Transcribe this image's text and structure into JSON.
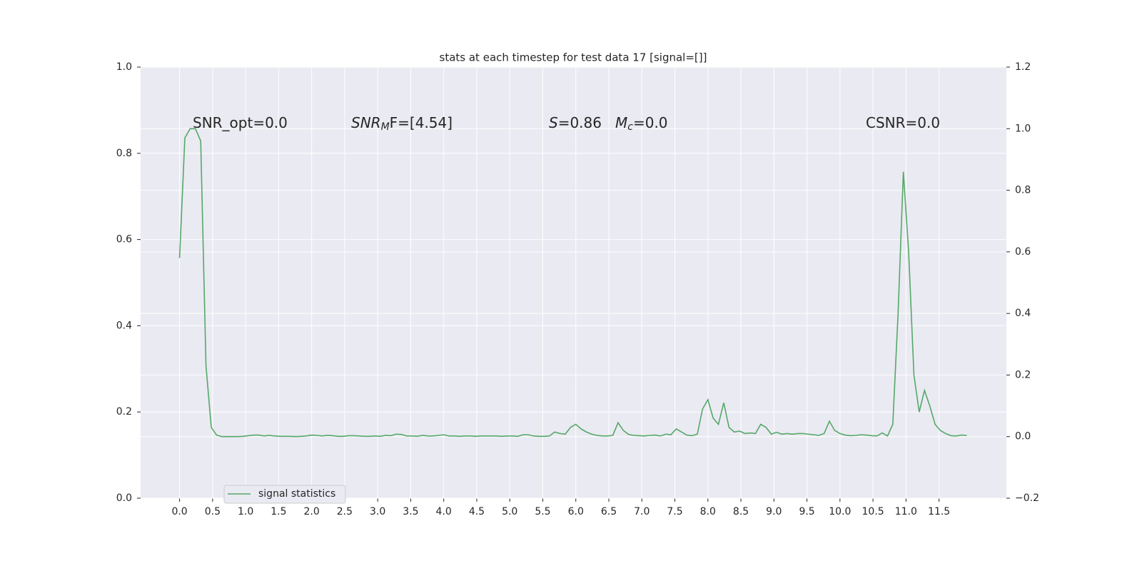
{
  "chart_data": {
    "type": "line",
    "title": "stats at each timestep for test data 17 [signal=[]]",
    "annotations": [
      {
        "text": "SNR_opt=0.0"
      },
      {
        "italic": "SNR",
        "sub": "M",
        "text": "F=[4.54]"
      },
      {
        "italic": "S",
        "text": "=0.86"
      },
      {
        "italic": "M",
        "sub": "c",
        "text": "=0.0"
      },
      {
        "text": "CSNR=0.0"
      }
    ],
    "x": [
      0,
      0.08,
      0.16,
      0.24,
      0.32,
      0.4,
      0.48,
      0.56,
      0.64,
      0.72,
      0.8,
      0.88,
      0.96,
      1.04,
      1.12,
      1.2,
      1.28,
      1.36,
      1.44,
      1.52,
      1.6,
      1.68,
      1.76,
      1.84,
      1.92,
      2.0,
      2.08,
      2.16,
      2.24,
      2.32,
      2.4,
      2.48,
      2.56,
      2.64,
      2.72,
      2.8,
      2.88,
      2.96,
      3.04,
      3.12,
      3.2,
      3.28,
      3.36,
      3.44,
      3.52,
      3.6,
      3.68,
      3.76,
      3.84,
      3.92,
      4.0,
      4.08,
      4.16,
      4.24,
      4.32,
      4.4,
      4.48,
      4.56,
      4.64,
      4.72,
      4.8,
      4.88,
      4.96,
      5.04,
      5.12,
      5.2,
      5.28,
      5.36,
      5.44,
      5.52,
      5.6,
      5.68,
      5.76,
      5.84,
      5.92,
      6.0,
      6.08,
      6.16,
      6.24,
      6.32,
      6.4,
      6.48,
      6.56,
      6.64,
      6.72,
      6.8,
      6.88,
      6.96,
      7.04,
      7.12,
      7.2,
      7.28,
      7.36,
      7.44,
      7.52,
      7.6,
      7.68,
      7.76,
      7.84,
      7.92,
      8.0,
      8.08,
      8.16,
      8.24,
      8.32,
      8.4,
      8.48,
      8.56,
      8.64,
      8.72,
      8.8,
      8.88,
      8.96,
      9.04,
      9.12,
      9.2,
      9.28,
      9.36,
      9.44,
      9.52,
      9.6,
      9.68,
      9.76,
      9.84,
      9.92,
      10.0,
      10.08,
      10.16,
      10.24,
      10.32,
      10.4,
      10.48,
      10.56,
      10.64,
      10.72,
      10.8,
      10.88,
      10.96,
      11.04,
      11.12,
      11.2,
      11.28,
      11.36,
      11.44,
      11.52,
      11.6,
      11.68,
      11.76,
      11.84,
      11.92
    ],
    "series": [
      {
        "name": "signal statistics",
        "color": "#55a868",
        "axis": "y2",
        "values": [
          0.58,
          0.97,
          1.0,
          1.0,
          0.96,
          0.23,
          0.03,
          0.005,
          0.0,
          0.0,
          0.0,
          0.0,
          0.001,
          0.003,
          0.005,
          0.005,
          0.002,
          0.004,
          0.002,
          0.001,
          0.001,
          0.001,
          0.0,
          0.001,
          0.002,
          0.005,
          0.004,
          0.002,
          0.004,
          0.003,
          0.001,
          0.001,
          0.003,
          0.003,
          0.002,
          0.001,
          0.001,
          0.002,
          0.001,
          0.004,
          0.003,
          0.008,
          0.007,
          0.002,
          0.002,
          0.001,
          0.004,
          0.002,
          0.002,
          0.004,
          0.006,
          0.002,
          0.002,
          0.001,
          0.002,
          0.002,
          0.001,
          0.002,
          0.002,
          0.002,
          0.002,
          0.001,
          0.002,
          0.002,
          0.001,
          0.006,
          0.006,
          0.002,
          0.001,
          0.001,
          0.002,
          0.015,
          0.01,
          0.008,
          0.03,
          0.04,
          0.025,
          0.015,
          0.008,
          0.004,
          0.002,
          0.002,
          0.004,
          0.045,
          0.02,
          0.007,
          0.004,
          0.003,
          0.002,
          0.004,
          0.005,
          0.002,
          0.008,
          0.006,
          0.025,
          0.015,
          0.005,
          0.003,
          0.008,
          0.09,
          0.12,
          0.06,
          0.04,
          0.11,
          0.03,
          0.015,
          0.018,
          0.01,
          0.012,
          0.01,
          0.04,
          0.03,
          0.008,
          0.014,
          0.008,
          0.01,
          0.008,
          0.01,
          0.01,
          0.008,
          0.006,
          0.004,
          0.01,
          0.05,
          0.02,
          0.01,
          0.005,
          0.003,
          0.004,
          0.006,
          0.005,
          0.003,
          0.002,
          0.012,
          0.002,
          0.04,
          0.4,
          0.86,
          0.6,
          0.2,
          0.08,
          0.15,
          0.1,
          0.04,
          0.02,
          0.01,
          0.003,
          0.002,
          0.005,
          0.004
        ]
      }
    ],
    "xlim": [
      -0.59,
      12.52
    ],
    "xticks": [
      {
        "value": 0,
        "label": "0.0"
      },
      {
        "value": 0.5,
        "label": "0.5"
      },
      {
        "value": 1,
        "label": "1.0"
      },
      {
        "value": 1.5,
        "label": "1.5"
      },
      {
        "value": 2,
        "label": "2.0"
      },
      {
        "value": 2.5,
        "label": "2.5"
      },
      {
        "value": 3,
        "label": "3.0"
      },
      {
        "value": 3.5,
        "label": "3.5"
      },
      {
        "value": 4,
        "label": "4.0"
      },
      {
        "value": 4.5,
        "label": "4.5"
      },
      {
        "value": 5,
        "label": "5.0"
      },
      {
        "value": 5.5,
        "label": "5.5"
      },
      {
        "value": 6,
        "label": "6.0"
      },
      {
        "value": 6.5,
        "label": "6.5"
      },
      {
        "value": 7,
        "label": "7.0"
      },
      {
        "value": 7.5,
        "label": "7.5"
      },
      {
        "value": 8,
        "label": "8.0"
      },
      {
        "value": 8.5,
        "label": "8.5"
      },
      {
        "value": 9,
        "label": "9.0"
      },
      {
        "value": 9.5,
        "label": "9.5"
      },
      {
        "value": 10,
        "label": "10.0"
      },
      {
        "value": 10.5,
        "label": "10.5"
      },
      {
        "value": 11,
        "label": "11.0"
      },
      {
        "value": 11.5,
        "label": "11.5"
      }
    ],
    "ylim": [
      0,
      1
    ],
    "yticks": [
      {
        "value": 0,
        "label": "0.0"
      },
      {
        "value": 0.2,
        "label": "0.2"
      },
      {
        "value": 0.4,
        "label": "0.4"
      },
      {
        "value": 0.6,
        "label": "0.6"
      },
      {
        "value": 0.8,
        "label": "0.8"
      },
      {
        "value": 1,
        "label": "1.0"
      }
    ],
    "y2lim": [
      -0.2,
      1.2
    ],
    "y2ticks": [
      {
        "value": -0.2,
        "label": "−0.2"
      },
      {
        "value": 0,
        "label": "0.0"
      },
      {
        "value": 0.2,
        "label": "0.2"
      },
      {
        "value": 0.4,
        "label": "0.4"
      },
      {
        "value": 0.6,
        "label": "0.6"
      },
      {
        "value": 0.8,
        "label": "0.8"
      },
      {
        "value": 1,
        "label": "1.0"
      },
      {
        "value": 1.2,
        "label": "1.2"
      }
    ],
    "grid": true,
    "legend": "lower left"
  }
}
